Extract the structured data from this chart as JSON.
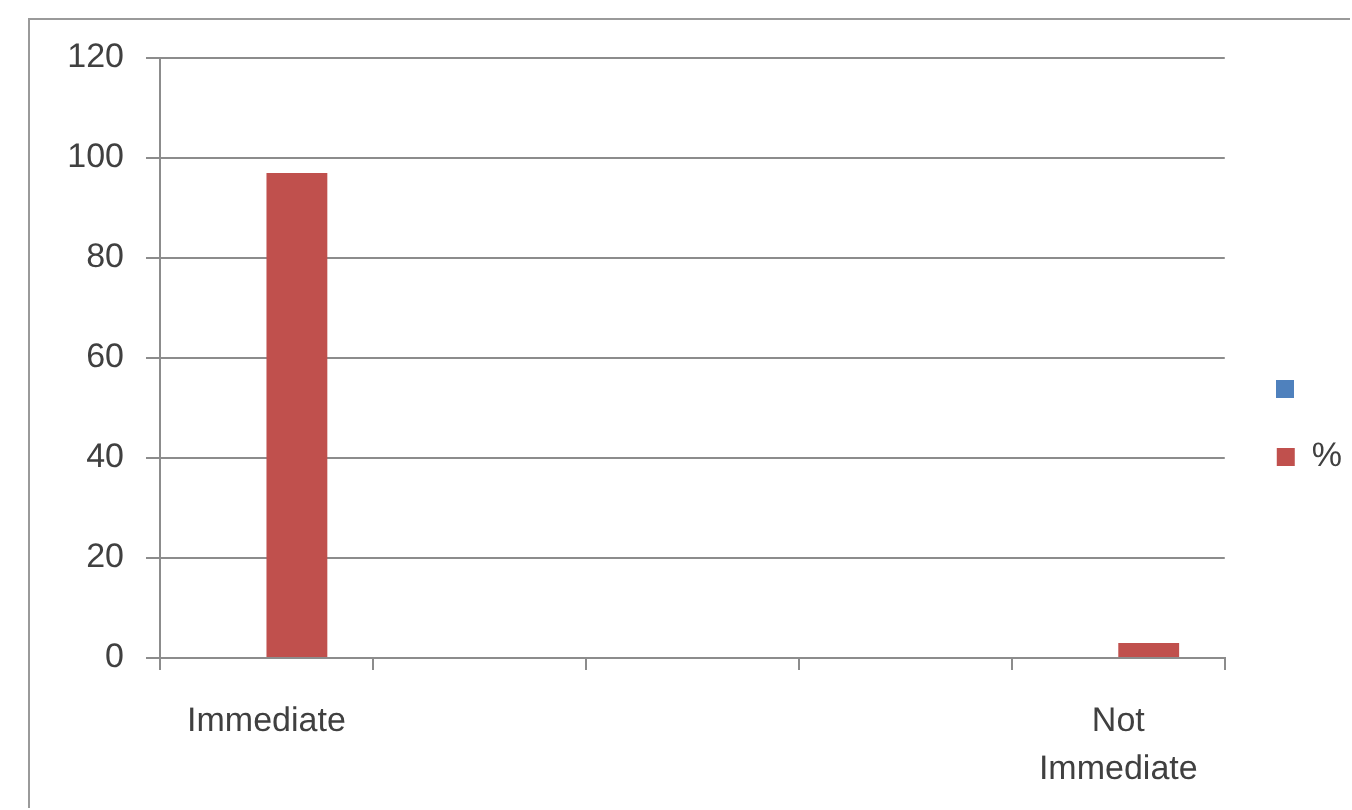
{
  "chart_data": {
    "type": "bar",
    "categories": [
      "Immediate",
      null,
      null,
      null,
      "Not Immediate"
    ],
    "series": [
      {
        "color": "#4f81bd",
        "values": [
          null,
          null,
          null,
          null,
          null
        ]
      },
      {
        "name": "%",
        "color": "#c0504d",
        "values": [
          97,
          null,
          null,
          null,
          3
        ]
      }
    ],
    "ylim": [
      0,
      120
    ],
    "yticks": [
      0,
      20,
      40,
      60,
      80,
      100,
      120
    ],
    "grid": "y",
    "legend": "right"
  }
}
